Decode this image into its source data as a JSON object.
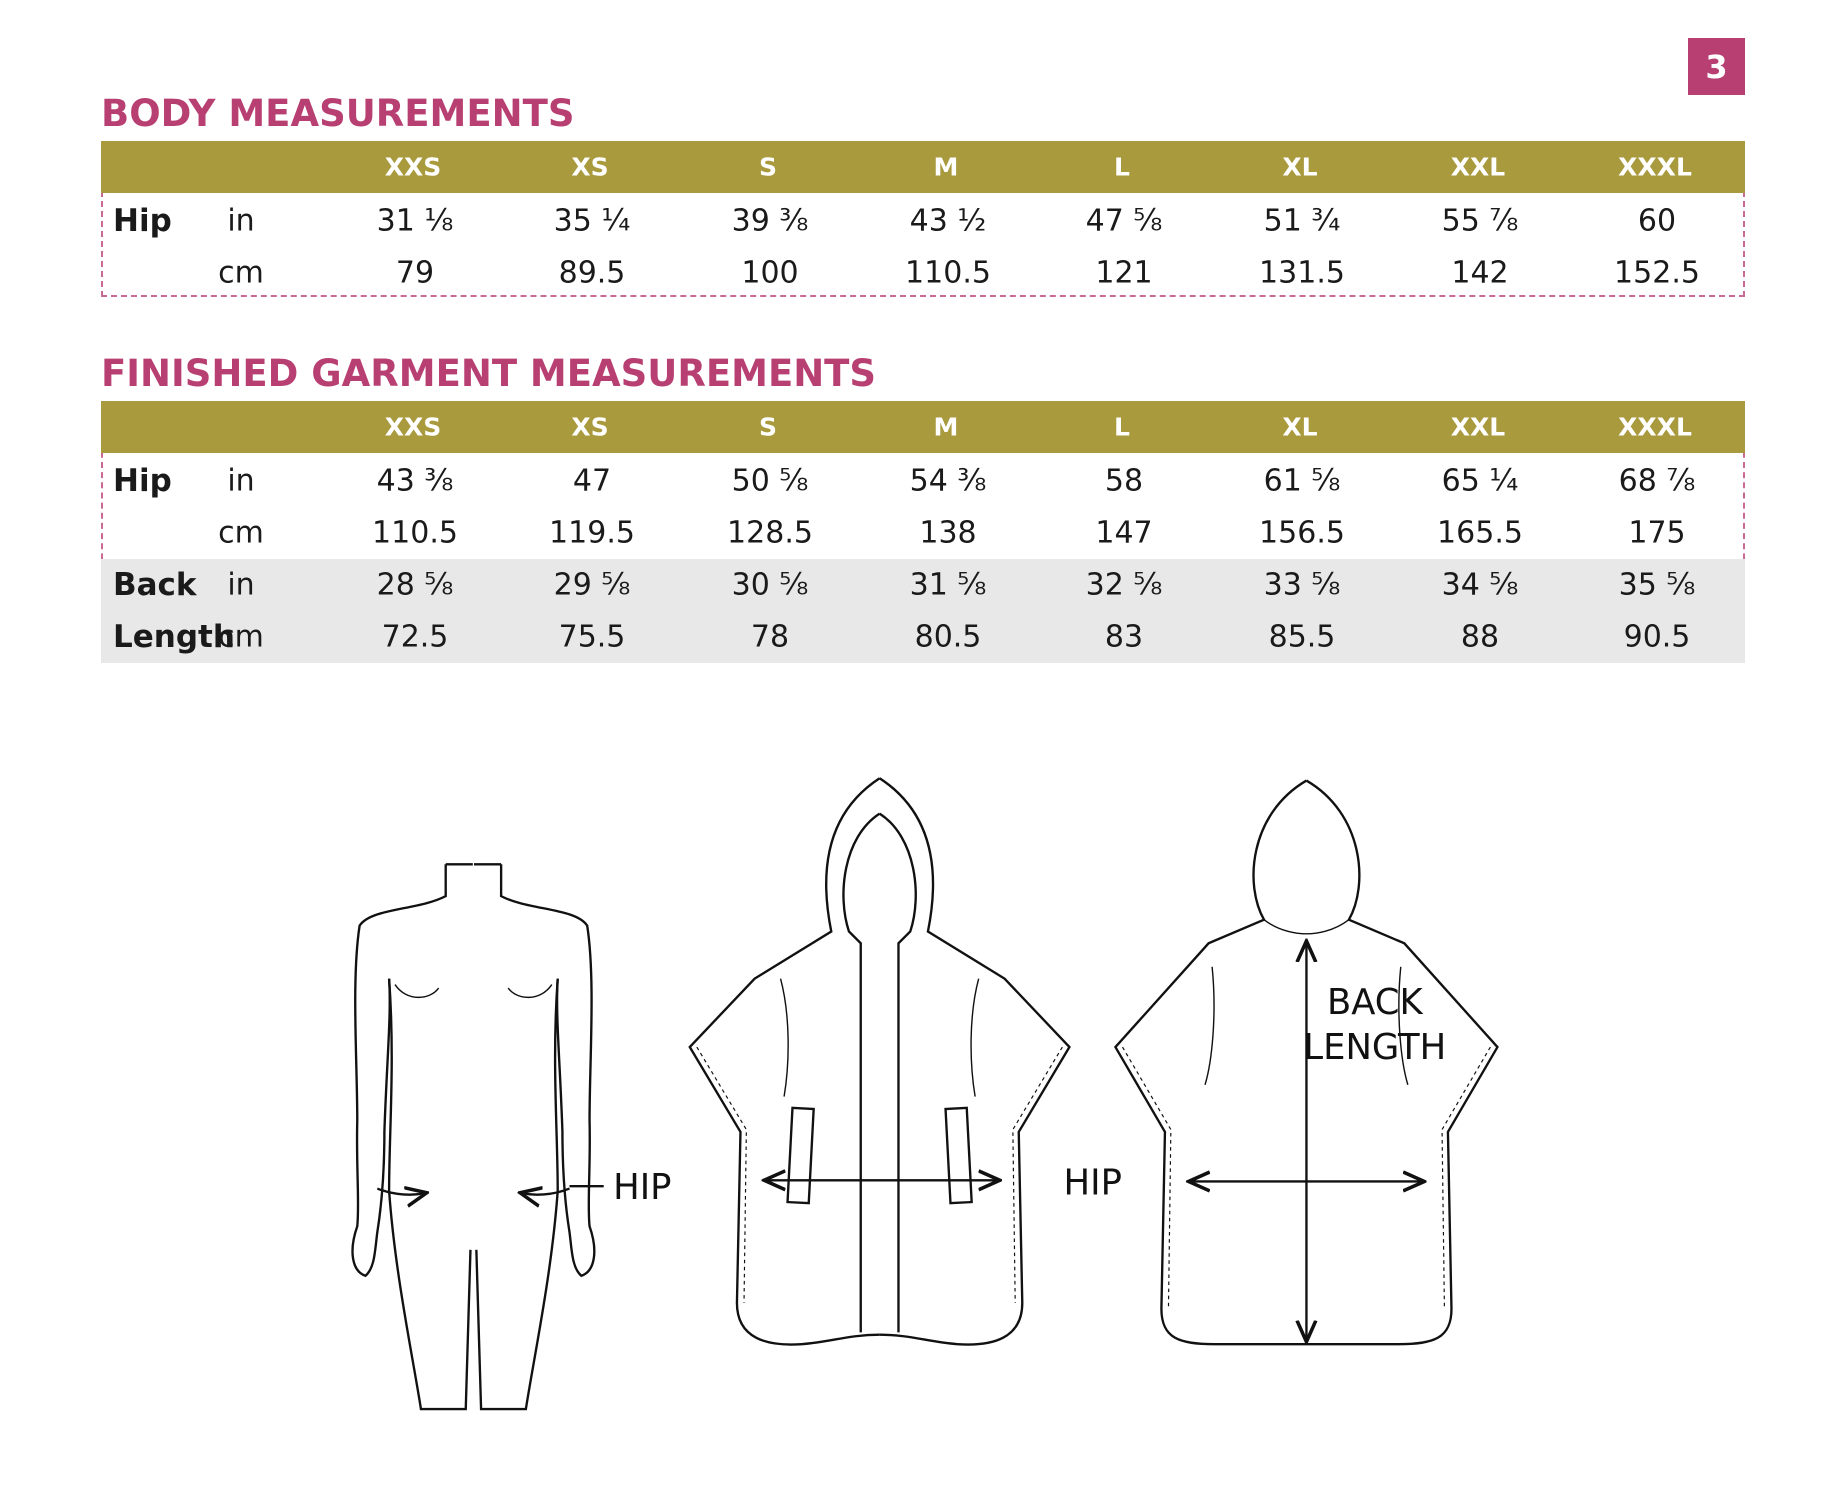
{
  "page_number": "3",
  "body_measurements": {
    "title": "BODY MEASUREMENTS",
    "sizes": [
      "XXS",
      "XS",
      "S",
      "M",
      "L",
      "XL",
      "XXL",
      "XXXL"
    ],
    "groups": [
      {
        "label": [
          "Hip"
        ],
        "lines": [
          {
            "unit": "in",
            "values": [
              "31 ⅛",
              "35 ¼",
              "39 ⅜",
              "43 ½",
              "47 ⅝",
              "51 ¾",
              "55 ⅞",
              "60"
            ]
          },
          {
            "unit": "cm",
            "values": [
              "79",
              "89.5",
              "100",
              "110.5",
              "121",
              "131.5",
              "142",
              "152.5"
            ]
          }
        ]
      }
    ]
  },
  "finished_garment_measurements": {
    "title": "FINISHED GARMENT MEASUREMENTS",
    "sizes": [
      "XXS",
      "XS",
      "S",
      "M",
      "L",
      "XL",
      "XXL",
      "XXXL"
    ],
    "groups": [
      {
        "label": [
          "Hip"
        ],
        "lines": [
          {
            "unit": "in",
            "values": [
              "43 ⅜",
              "47",
              "50 ⅝",
              "54 ⅜",
              "58",
              "61 ⅝",
              "65 ¼",
              "68 ⅞"
            ]
          },
          {
            "unit": "cm",
            "values": [
              "110.5",
              "119.5",
              "128.5",
              "138",
              "147",
              "156.5",
              "165.5",
              "175"
            ]
          }
        ]
      },
      {
        "label": [
          "Back",
          "Length"
        ],
        "lines": [
          {
            "unit": "in",
            "values": [
              "28 ⅝",
              "29 ⅝",
              "30 ⅝",
              "31 ⅝",
              "32 ⅝",
              "33 ⅝",
              "34 ⅝",
              "35 ⅝"
            ]
          },
          {
            "unit": "cm",
            "values": [
              "72.5",
              "75.5",
              "78",
              "80.5",
              "83",
              "85.5",
              "88",
              "90.5"
            ]
          }
        ]
      }
    ]
  },
  "diagrams": {
    "body_hip": "HIP",
    "garment_hip": "HIP",
    "back_length": [
      "BACK",
      "LENGTH"
    ]
  }
}
